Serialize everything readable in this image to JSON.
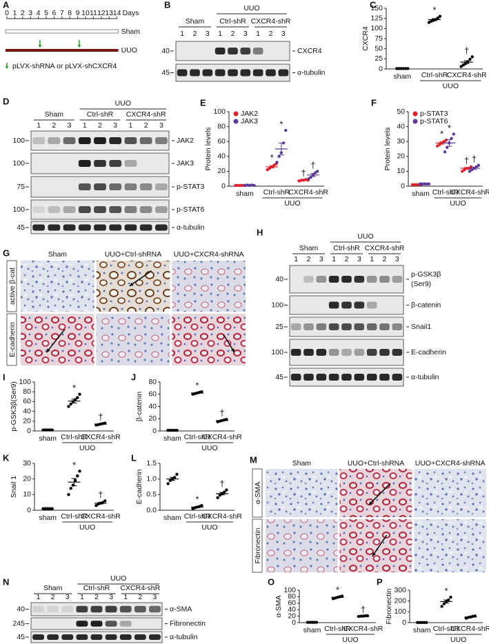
{
  "timeline": {
    "panel": "A",
    "days": [
      0,
      1,
      2,
      3,
      4,
      5,
      6,
      7,
      8,
      9,
      10,
      11,
      12,
      13,
      14
    ],
    "unit": "Days",
    "groups": [
      "Sham",
      "UUO"
    ],
    "legend": "pLVX-shRNA or pLVX-shCXCR4"
  },
  "blots": [
    {
      "panel": "B",
      "super": "UUO",
      "groups": [
        "Sham",
        "Ctrl-shR",
        "CXCR4-shR"
      ],
      "lanes": [
        "1",
        "2",
        "3",
        "1",
        "2",
        "3",
        "1",
        "2",
        "3"
      ],
      "rows": [
        {
          "mw": 40,
          "label": "CXCR4",
          "bands": [
            0,
            0,
            0,
            0.9,
            0.85,
            0.8,
            0.5,
            0,
            0
          ]
        },
        {
          "mw": 45,
          "label": "α-tubulin",
          "bands": [
            0.9,
            0.9,
            0.9,
            0.9,
            0.9,
            0.9,
            0.9,
            0.9,
            0.9
          ]
        }
      ]
    },
    {
      "panel": "D",
      "super": "UUO",
      "groups": [
        "Sham",
        "Ctrl-shR",
        "CXCR4-shR"
      ],
      "lanes": [
        "1",
        "2",
        "3",
        "1",
        "2",
        "3",
        "1",
        "2",
        "3"
      ],
      "rows": [
        {
          "mw": 100,
          "label": "JAK2",
          "bands": [
            0.2,
            0.3,
            0.6,
            0.95,
            0.95,
            0.9,
            0.7,
            0.6,
            0.5
          ]
        },
        {
          "mw": 100,
          "label": "JAK3",
          "bands": [
            0,
            0,
            0,
            0.95,
            0.85,
            0.8,
            0.3,
            0,
            0
          ]
        },
        {
          "mw": 75,
          "label": "p-STAT3",
          "bands": [
            0,
            0,
            0,
            0.7,
            0.75,
            0.6,
            0.5,
            0.45,
            0.3
          ]
        },
        {
          "mw": 100,
          "label": "p-STAT6",
          "bands": [
            0.1,
            0.2,
            0.3,
            0.75,
            0.75,
            0.7,
            0.5,
            0.45,
            0.35
          ]
        },
        {
          "mw": 45,
          "label": "α-tubulin",
          "bands": [
            0.9,
            0.9,
            0.9,
            0.9,
            0.9,
            0.9,
            0.9,
            0.9,
            0.9
          ]
        }
      ]
    },
    {
      "panel": "H",
      "super": "UUO",
      "groups": [
        "Sham",
        "Ctrl-shR",
        "CXCR4-shR"
      ],
      "lanes": [
        "1",
        "2",
        "3",
        "1",
        "2",
        "3",
        "1",
        "2",
        "3"
      ],
      "rows": [
        {
          "mw": 40,
          "label": "p-GSK3β",
          "sublabel": "(Ser9)",
          "bands": [
            0,
            0.2,
            0.4,
            0.9,
            0.9,
            0.85,
            0.4,
            0.45,
            0.35
          ]
        },
        {
          "mw": 100,
          "label": "β-catenin",
          "bands": [
            0,
            0,
            0,
            0.9,
            0.85,
            0.85,
            0.3,
            0,
            0
          ]
        },
        {
          "mw": 25,
          "label": "Snail1",
          "bands": [
            0.3,
            0.4,
            0.5,
            0.75,
            0.75,
            0.7,
            0.6,
            0.55,
            0.45
          ]
        },
        {
          "mw": 100,
          "label": "E-cadherin",
          "bands": [
            0.9,
            0.9,
            0.9,
            0.4,
            0.3,
            0.35,
            0.8,
            0.85,
            0.85
          ]
        },
        {
          "mw": 45,
          "label": "α-tubulin",
          "bands": [
            0.9,
            0.9,
            0.9,
            0.9,
            0.9,
            0.9,
            0.9,
            0.9,
            0.9
          ]
        }
      ]
    },
    {
      "panel": "N",
      "super": "UUO",
      "groups": [
        "Sham",
        "Ctrl-shR",
        "CXCR4-shR"
      ],
      "lanes": [
        "1",
        "2",
        "3",
        "1",
        "2",
        "3",
        "1",
        "2",
        "3"
      ],
      "rows": [
        {
          "mw": 40,
          "label": "α-SMA",
          "bands": [
            0.1,
            0.1,
            0.1,
            0.8,
            0.8,
            0.8,
            0.7,
            0.65,
            0.6
          ]
        },
        {
          "mw": 245,
          "label": "Fibronectin",
          "bands": [
            0,
            0,
            0,
            0.95,
            0.95,
            0.7,
            0.3,
            0,
            0
          ]
        },
        {
          "mw": 45,
          "label": "α-tubulin",
          "bands": [
            0.9,
            0.9,
            0.9,
            0.9,
            0.9,
            0.9,
            0.9,
            0.9,
            0.9
          ]
        }
      ]
    }
  ],
  "histology": [
    {
      "panel": "G",
      "columns": [
        "Sham",
        "UUO+Ctrl-shRNA",
        "UUO+CXCR4-shRNA"
      ],
      "rows": [
        "active β-cat",
        "E-cadherin"
      ]
    },
    {
      "panel": "M",
      "columns": [
        "Sham",
        "UUO+Ctrl-shRNA",
        "UUO+CXCR4-shRNA"
      ],
      "rows": [
        "α-SMA",
        "Fibronectin"
      ]
    }
  ],
  "chart_data": [
    {
      "type": "dot",
      "panel": "C",
      "ylabel": "CXCR4",
      "categories": [
        "sham",
        "Ctrl-shR",
        "CXCR4-shR"
      ],
      "group_label": "UUO",
      "ylim": [
        0,
        150
      ],
      "yticks": [
        0,
        25,
        50,
        75,
        100,
        125,
        150
      ],
      "series": [
        {
          "color": "#000000",
          "values": [
            [
              1,
              1,
              1,
              1,
              1,
              1
            ],
            [
              115,
              118,
              120,
              122,
              126,
              130
            ],
            [
              6,
              10,
              13,
              18,
              24,
              30
            ]
          ],
          "means": [
            1,
            122,
            17
          ],
          "sem": [
            0.2,
            2.5,
            3.5
          ],
          "annotations": [
            null,
            "*",
            "†"
          ]
        }
      ]
    },
    {
      "type": "dot",
      "panel": "E",
      "ylabel": "Protein levels",
      "categories": [
        "sham",
        "Ctrl-shR",
        "CXCR4-shR"
      ],
      "group_label": "UUO",
      "ylim": [
        0,
        100
      ],
      "yticks": [
        0,
        20,
        40,
        60,
        80,
        100
      ],
      "legend": "upper-left",
      "series": [
        {
          "name": "JAK2",
          "color": "#e0202a",
          "values": [
            [
              1,
              1,
              1,
              1,
              1
            ],
            [
              22,
              24,
              26,
              28,
              30
            ],
            [
              7,
              8,
              8,
              9,
              8
            ]
          ],
          "means": [
            1,
            26,
            8
          ],
          "sem": [
            0.2,
            1.5,
            0.5
          ],
          "annotations": [
            null,
            "*",
            "†"
          ]
        },
        {
          "name": "JAK3",
          "color": "#5b3a9a",
          "values": [
            [
              1,
              1.5,
              1,
              1.5,
              1
            ],
            [
              32,
              40,
              45,
              58,
              75
            ],
            [
              10,
              12,
              15,
              18,
              20
            ]
          ],
          "means": [
            1.2,
            50,
            15
          ],
          "sem": [
            0.2,
            8,
            2
          ],
          "annotations": [
            null,
            "*",
            "†"
          ]
        }
      ]
    },
    {
      "type": "dot",
      "panel": "F",
      "ylabel": "Protein levels",
      "categories": [
        "sham",
        "Ctrl-shR",
        "CXCR4-shR"
      ],
      "group_label": "UUO",
      "ylim": [
        0,
        50
      ],
      "yticks": [
        0,
        10,
        20,
        30,
        40,
        50
      ],
      "legend": "upper-left",
      "series": [
        {
          "name": "p-STAT3",
          "color": "#e0202a",
          "values": [
            [
              1,
              1,
              1,
              1,
              1
            ],
            [
              27,
              28,
              29,
              30,
              31
            ],
            [
              10,
              11,
              12,
              12,
              13
            ]
          ],
          "means": [
            1,
            29,
            12
          ],
          "sem": [
            0.2,
            0.8,
            0.5
          ],
          "annotations": [
            null,
            "*",
            "†"
          ]
        },
        {
          "name": "p-STAT6",
          "color": "#5b3a9a",
          "values": [
            [
              1.5,
              1.5,
              1.5,
              1.5,
              1.5
            ],
            [
              23,
              26,
              29,
              32,
              35
            ],
            [
              10,
              11,
              12,
              13,
              14
            ]
          ],
          "means": [
            1.5,
            29,
            12
          ],
          "sem": [
            0.2,
            2.2,
            0.8
          ],
          "annotations": [
            null,
            "*",
            "†"
          ]
        }
      ]
    },
    {
      "type": "dot",
      "panel": "I",
      "ylabel": "p-GSK3β(Ser9)",
      "categories": [
        "sham",
        "Ctrl-shR",
        "CXCR4-shR"
      ],
      "group_label": "UUO",
      "ylim": [
        0,
        100
      ],
      "yticks": [
        0,
        20,
        40,
        60,
        80,
        100
      ],
      "series": [
        {
          "color": "#000000",
          "values": [
            [
              2,
              2,
              2,
              2,
              2
            ],
            [
              50,
              55,
              60,
              64,
              68,
              75
            ],
            [
              12,
              13,
              14,
              15,
              16
            ]
          ],
          "means": [
            2,
            61,
            14
          ],
          "sem": [
            0.2,
            4,
            0.8
          ],
          "annotations": [
            null,
            "*",
            "†"
          ]
        }
      ]
    },
    {
      "type": "dot",
      "panel": "J",
      "ylabel": "β-catenin",
      "categories": [
        "sham",
        "Ctrl-shR",
        "CXCR4-shR"
      ],
      "group_label": "UUO",
      "ylim": [
        0,
        80
      ],
      "yticks": [
        0,
        20,
        40,
        60,
        80
      ],
      "series": [
        {
          "color": "#000000",
          "values": [
            [
              1,
              1,
              1,
              1,
              1
            ],
            [
              60,
              61,
              62,
              63,
              64
            ],
            [
              15,
              16,
              17,
              18,
              19
            ]
          ],
          "means": [
            1,
            62,
            17
          ],
          "sem": [
            0.2,
            0.7,
            0.7
          ],
          "annotations": [
            null,
            "*",
            "†"
          ]
        }
      ]
    },
    {
      "type": "dot",
      "panel": "K",
      "ylabel": "Snail 1",
      "categories": [
        "sham",
        "Ctrl-shR",
        "CXCR4-shR"
      ],
      "group_label": "UUO",
      "ylim": [
        0,
        30
      ],
      "yticks": [
        0,
        10,
        20,
        30
      ],
      "series": [
        {
          "color": "#000000",
          "values": [
            [
              1,
              1,
              1,
              1,
              1
            ],
            [
              10,
              14,
              16,
              19,
              22,
              25
            ],
            [
              3,
              4,
              4.5,
              5,
              6
            ]
          ],
          "means": [
            1,
            18,
            4.5
          ],
          "sem": [
            0.1,
            2.3,
            0.5
          ],
          "annotations": [
            null,
            "*",
            "†"
          ]
        }
      ]
    },
    {
      "type": "dot",
      "panel": "L",
      "ylabel": "E-cadherin",
      "categories": [
        "sham",
        "Ctrl-shR",
        "CXCR4-shR"
      ],
      "group_label": "UUO",
      "ylim": [
        0,
        1.5
      ],
      "yticks": [
        {
          "value": 0,
          "label": "0.0"
        },
        0.5,
        {
          "value": 1,
          "label": "1.0"
        },
        1.5
      ],
      "series": [
        {
          "color": "#000000",
          "values": [
            [
              0.85,
              0.95,
              1,
              1.05,
              1.15
            ],
            [
              0.05,
              0.08,
              0.1,
              0.12,
              0.15
            ],
            [
              0.4,
              0.48,
              0.53,
              0.58,
              0.65
            ]
          ],
          "means": [
            1,
            0.1,
            0.53
          ],
          "sem": [
            0.05,
            0.02,
            0.04
          ],
          "annotations": [
            null,
            "*",
            "†"
          ]
        }
      ]
    },
    {
      "type": "dot",
      "panel": "O",
      "ylabel": "α-SMA",
      "categories": [
        "sham",
        "Ctrl-shR",
        "CXCR4-shR"
      ],
      "group_label": "UUO",
      "ylim": [
        0,
        100
      ],
      "yticks": [
        0,
        20,
        40,
        60,
        80,
        100
      ],
      "series": [
        {
          "color": "#000000",
          "values": [
            [
              1,
              1,
              1,
              1,
              1
            ],
            [
              74,
              76,
              78,
              80,
              82
            ],
            [
              19,
              20,
              20,
              21,
              21
            ]
          ],
          "means": [
            1,
            78,
            20
          ],
          "sem": [
            0.2,
            1.5,
            0.4
          ],
          "annotations": [
            null,
            "*",
            "†"
          ]
        }
      ]
    },
    {
      "type": "dot",
      "panel": "P",
      "ylabel": "Fibronectin",
      "categories": [
        "sham",
        "Ctrl-shR",
        "CXCR4-shR"
      ],
      "group_label": "UUO",
      "ylim": [
        0,
        300
      ],
      "yticks": [
        0,
        100,
        200,
        300
      ],
      "series": [
        {
          "color": "#000000",
          "values": [
            [
              1,
              1,
              1,
              1,
              1
            ],
            [
              150,
              175,
              195,
              210,
              235
            ],
            [
              40,
              48,
              52,
              58,
              62
            ]
          ],
          "means": [
            1,
            195,
            52
          ],
          "sem": [
            0.5,
            15,
            4
          ],
          "annotations": [
            null,
            "*",
            null
          ]
        }
      ]
    }
  ]
}
